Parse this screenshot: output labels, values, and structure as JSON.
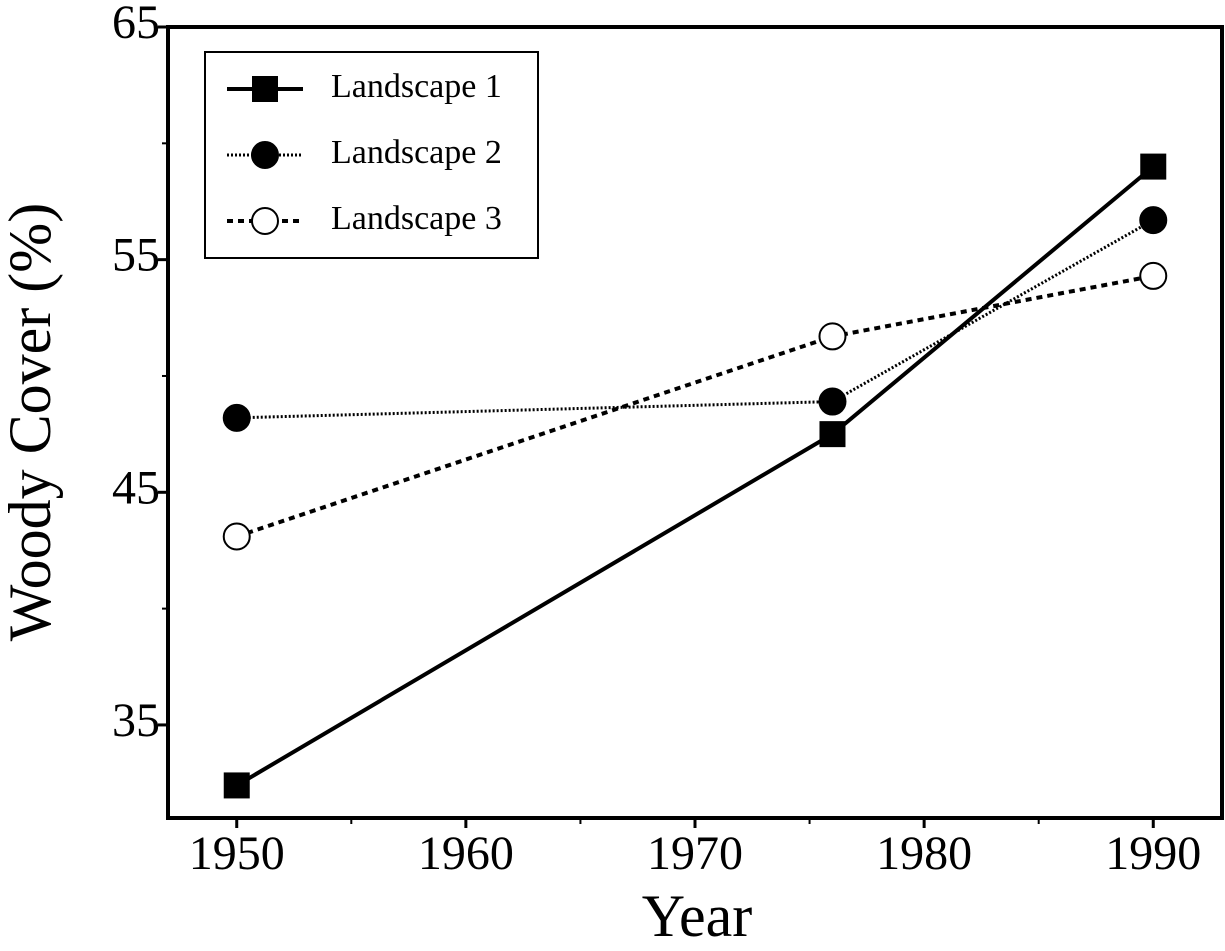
{
  "chart_data": {
    "type": "line",
    "x_label": "Year",
    "y_label": "Woody Cover (%)",
    "x": [
      1950,
      1976,
      1990
    ],
    "series": [
      {
        "name": "Landscape 1",
        "color": "#000000",
        "dash": "solid",
        "marker": "square-filled",
        "values": [
          32.4,
          47.5,
          59.0
        ]
      },
      {
        "name": "Landscape 2",
        "color": "#000000",
        "dash": "dotted",
        "marker": "circle-filled",
        "values": [
          48.2,
          48.9,
          56.7
        ]
      },
      {
        "name": "Landscape 3",
        "color": "#000000",
        "dash": "dashed",
        "marker": "circle-open",
        "values": [
          43.1,
          51.7,
          54.3
        ]
      }
    ],
    "xlim": [
      1947,
      1993
    ],
    "xticks": [
      1950,
      1960,
      1970,
      1980,
      1990
    ],
    "xminorticks": [
      1955,
      1965,
      1975,
      1985
    ],
    "ylim": [
      31,
      65
    ],
    "yticks": [
      35,
      45,
      55,
      65
    ],
    "yminorticks": [
      40,
      50,
      60
    ],
    "grid": false,
    "legend": "upper left"
  }
}
